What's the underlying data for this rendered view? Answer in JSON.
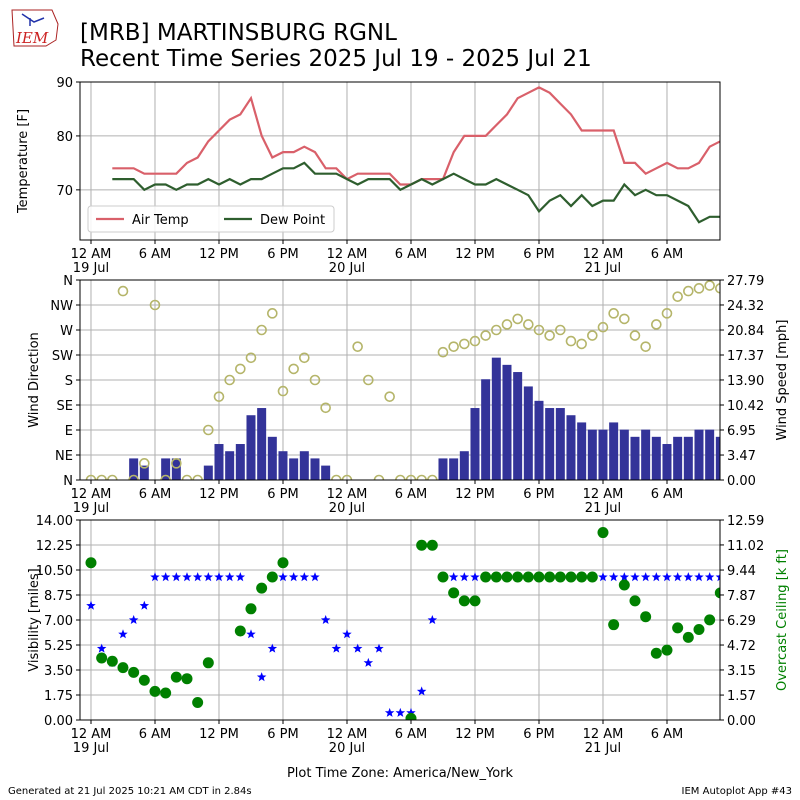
{
  "header": {
    "logo_text": "IEM",
    "title": "[MRB] MARTINSBURG RGNL",
    "subtitle": "Recent Time Series 2025 Jul 19 - 2025 Jul 21"
  },
  "footer": {
    "left": "Generated at 21 Jul 2025 10:21 AM CDT in 2.84s",
    "right": "IEM Autoplot App #43"
  },
  "chart_data": [
    {
      "type": "line",
      "ylabel": "Temperature [F]",
      "grid": true,
      "legend": "lower left",
      "xlim": [
        -1.03,
        58.97
      ],
      "ylim": [
        60.7,
        90
      ],
      "yticks": [
        70,
        80,
        90
      ],
      "xticks": [
        {
          "value": 0,
          "label": "12 AM\n19 Jul"
        },
        {
          "value": 6,
          "label": "6 AM"
        },
        {
          "value": 12,
          "label": "12 PM"
        },
        {
          "value": 18,
          "label": "6 PM"
        },
        {
          "value": 24,
          "label": "12 AM\n20 Jul"
        },
        {
          "value": 30,
          "label": "6 AM"
        },
        {
          "value": 36,
          "label": "12 PM"
        },
        {
          "value": 42,
          "label": "6 PM"
        },
        {
          "value": 48,
          "label": "12 AM\n21 Jul"
        },
        {
          "value": 54,
          "label": "6 AM"
        }
      ],
      "x": [
        0,
        1,
        2,
        3,
        4,
        5,
        6,
        7,
        8,
        9,
        10,
        11,
        12,
        13,
        14,
        15,
        16,
        17,
        18,
        19,
        20,
        21,
        22,
        23,
        24,
        25,
        26,
        27,
        28,
        29,
        30,
        31,
        32,
        33,
        34,
        35,
        36,
        37,
        38,
        39,
        40,
        41,
        42,
        43,
        44,
        45,
        46,
        47,
        48,
        49,
        50,
        51,
        52,
        53,
        54,
        55,
        56,
        57,
        58,
        59
      ],
      "series": [
        {
          "name": "Air Temp",
          "color": "#d9606a",
          "type": "line",
          "values": [
            null,
            null,
            74,
            74,
            74,
            73,
            73,
            73,
            73,
            75,
            76,
            79,
            81,
            83,
            84,
            87,
            80,
            76,
            77,
            77,
            78,
            77,
            74,
            74,
            72,
            73,
            73,
            73,
            73,
            71,
            71,
            72,
            72,
            72,
            77,
            80,
            80,
            80,
            82,
            84,
            87,
            88,
            89,
            88,
            86,
            84,
            81,
            81,
            81,
            81,
            75,
            75,
            73,
            74,
            75,
            74,
            74,
            75,
            78,
            79
          ]
        },
        {
          "name": "Dew Point",
          "color": "#2e5e2e",
          "type": "line",
          "values": [
            null,
            null,
            72,
            72,
            72,
            70,
            71,
            71,
            70,
            71,
            71,
            72,
            71,
            72,
            71,
            72,
            72,
            73,
            74,
            74,
            75,
            73,
            73,
            73,
            72,
            71,
            72,
            72,
            72,
            70,
            71,
            72,
            71,
            72,
            73,
            72,
            71,
            71,
            72,
            71,
            70,
            69,
            66,
            68,
            69,
            67,
            69,
            67,
            68,
            68,
            71,
            69,
            70,
            69,
            69,
            68,
            67,
            64,
            65,
            65
          ]
        }
      ]
    },
    {
      "type": "combo",
      "ylabel": "Wind Direction",
      "y2label": "Wind Speed [mph]",
      "grid": true,
      "xlim": [
        -1.03,
        58.97
      ],
      "ylim": [
        0,
        360
      ],
      "yticks": [
        {
          "value": 0,
          "label": "N"
        },
        {
          "value": 45,
          "label": "NE"
        },
        {
          "value": 90,
          "label": "E"
        },
        {
          "value": 135,
          "label": "SE"
        },
        {
          "value": 180,
          "label": "S"
        },
        {
          "value": 225,
          "label": "SW"
        },
        {
          "value": 270,
          "label": "W"
        },
        {
          "value": 315,
          "label": "NW"
        },
        {
          "value": 360,
          "label": "N"
        }
      ],
      "y2lim": [
        0,
        27.79
      ],
      "y2ticks": [
        {
          "value": 0,
          "label": "0.00"
        },
        3.47,
        6.95,
        10.42,
        {
          "value": 13.9,
          "label": "13.90"
        },
        17.37,
        20.84,
        24.32,
        27.79
      ],
      "xticks": [
        {
          "value": 0,
          "label": "12 AM\n19 Jul"
        },
        {
          "value": 6,
          "label": "6 AM"
        },
        {
          "value": 12,
          "label": "12 PM"
        },
        {
          "value": 18,
          "label": "6 PM"
        },
        {
          "value": 24,
          "label": "12 AM\n20 Jul"
        },
        {
          "value": 30,
          "label": "6 AM"
        },
        {
          "value": 36,
          "label": "12 PM"
        },
        {
          "value": 42,
          "label": "6 PM"
        },
        {
          "value": 48,
          "label": "12 AM\n21 Jul"
        },
        {
          "value": 54,
          "label": "6 AM"
        }
      ],
      "x": [
        0,
        1,
        2,
        3,
        4,
        5,
        6,
        7,
        8,
        9,
        10,
        11,
        12,
        13,
        14,
        15,
        16,
        17,
        18,
        19,
        20,
        21,
        22,
        23,
        24,
        25,
        26,
        27,
        28,
        29,
        30,
        31,
        32,
        33,
        34,
        35,
        36,
        37,
        38,
        39,
        40,
        41,
        42,
        43,
        44,
        45,
        46,
        47,
        48,
        49,
        50,
        51,
        52,
        53,
        54,
        55,
        56,
        57,
        58,
        59
      ],
      "series": [
        {
          "color": "#333399",
          "type": "bar",
          "axis": "y2",
          "values": [
            0,
            0,
            0,
            0,
            3,
            2,
            0,
            3,
            3,
            0,
            0,
            2,
            5,
            4,
            5,
            9,
            10,
            6,
            4,
            3,
            4,
            3,
            2,
            0,
            0,
            0,
            0,
            0,
            0,
            0,
            0,
            0,
            0,
            3,
            3,
            4,
            10,
            14,
            17,
            16,
            15,
            13,
            11,
            10,
            10,
            9,
            8,
            7,
            7,
            8,
            7,
            6,
            7,
            6,
            5,
            6,
            6,
            7,
            7,
            6
          ]
        },
        {
          "color": "#b5b56a",
          "type": "scatter",
          "marker": "ring",
          "values": [
            0,
            0,
            0,
            340,
            0,
            30,
            315,
            0,
            30,
            0,
            0,
            90,
            150,
            180,
            200,
            220,
            270,
            300,
            160,
            200,
            220,
            180,
            130,
            0,
            0,
            240,
            180,
            0,
            150,
            0,
            0,
            0,
            0,
            230,
            240,
            245,
            250,
            260,
            270,
            280,
            290,
            280,
            270,
            260,
            270,
            250,
            245,
            260,
            275,
            300,
            290,
            260,
            240,
            280,
            300,
            330,
            340,
            345,
            350,
            345
          ]
        }
      ]
    },
    {
      "type": "scatter",
      "ylabel": "Visibility [miles]",
      "y2label": "Overcast Ceiling [k ft]",
      "y2label_color": "#008000",
      "grid": true,
      "xlabel": "Plot Time Zone: America/New_York",
      "xlim": [
        -1.03,
        58.97
      ],
      "ylim": [
        0,
        14
      ],
      "yticks": [
        {
          "value": 0,
          "label": "0.00"
        },
        1.75,
        {
          "value": 3.5,
          "label": "3.50"
        },
        5.25,
        {
          "value": 7,
          "label": "7.00"
        },
        8.75,
        {
          "value": 10.5,
          "label": "10.50"
        },
        12.25,
        {
          "value": 14,
          "label": "14.00"
        }
      ],
      "y2lim": [
        0,
        12.59
      ],
      "y2ticks": [
        {
          "value": 0,
          "label": "0.00"
        },
        1.57,
        3.15,
        4.72,
        6.29,
        7.87,
        9.44,
        11.02,
        12.59
      ],
      "xticks": [
        {
          "value": 0,
          "label": "12 AM\n19 Jul"
        },
        {
          "value": 6,
          "label": "6 AM"
        },
        {
          "value": 12,
          "label": "12 PM"
        },
        {
          "value": 18,
          "label": "6 PM"
        },
        {
          "value": 24,
          "label": "12 AM\n20 Jul"
        },
        {
          "value": 30,
          "label": "6 AM"
        },
        {
          "value": 36,
          "label": "12 PM"
        },
        {
          "value": 42,
          "label": "6 PM"
        },
        {
          "value": 48,
          "label": "12 AM\n21 Jul"
        },
        {
          "value": 54,
          "label": "6 AM"
        }
      ],
      "x": [
        0,
        1,
        2,
        3,
        4,
        5,
        6,
        7,
        8,
        9,
        10,
        11,
        12,
        13,
        14,
        15,
        16,
        17,
        18,
        19,
        20,
        21,
        22,
        23,
        24,
        25,
        26,
        27,
        28,
        29,
        30,
        31,
        32,
        33,
        34,
        35,
        36,
        37,
        38,
        39,
        40,
        41,
        42,
        43,
        44,
        45,
        46,
        47,
        48,
        49,
        50,
        51,
        52,
        53,
        54,
        55,
        56,
        57,
        58,
        59
      ],
      "series": [
        {
          "color": "#0000ff",
          "type": "scatter",
          "marker": "star",
          "values": [
            8,
            5,
            4,
            6,
            7,
            8,
            10,
            10,
            10,
            10,
            10,
            10,
            10,
            10,
            10,
            6,
            3,
            5,
            10,
            10,
            10,
            10,
            7,
            5,
            6,
            5,
            4,
            5,
            0.5,
            0.5,
            0.5,
            2,
            7,
            10,
            10,
            10,
            10,
            10,
            10,
            10,
            10,
            10,
            10,
            10,
            10,
            10,
            10,
            10,
            10,
            10,
            10,
            10,
            10,
            10,
            10,
            10,
            10,
            10,
            10,
            10
          ]
        },
        {
          "color": "#008000",
          "type": "scatter",
          "marker": "dot",
          "axis": "y2",
          "values": [
            9.9,
            3.9,
            3.7,
            3.3,
            3.0,
            2.5,
            1.8,
            1.7,
            2.7,
            2.6,
            1.1,
            3.6,
            null,
            null,
            5.6,
            7.0,
            8.3,
            9.0,
            9.9,
            null,
            null,
            null,
            null,
            null,
            null,
            null,
            null,
            null,
            null,
            null,
            0.1,
            11.0,
            11.0,
            9.0,
            8.0,
            7.5,
            7.5,
            9.0,
            9.0,
            9.0,
            9.0,
            9.0,
            9.0,
            9.0,
            9.0,
            9.0,
            9.0,
            9.0,
            11.8,
            6.0,
            8.5,
            7.5,
            6.5,
            4.2,
            4.4,
            5.8,
            5.2,
            5.7,
            6.3,
            8.0
          ]
        }
      ]
    }
  ]
}
